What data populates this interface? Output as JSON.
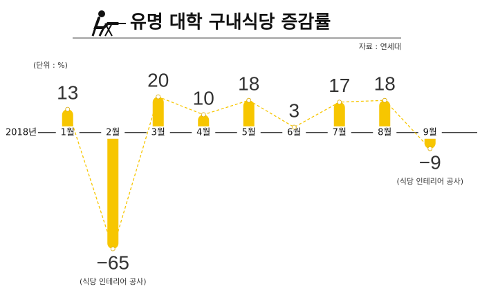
{
  "chart_data": {
    "type": "bar",
    "title": "유명 대학 구내식당 증감률",
    "source": "자료 : 연세대",
    "unit": "(단위 : %)",
    "x_prefix": "2018년",
    "categories": [
      "1월",
      "2월",
      "3월",
      "4월",
      "5월",
      "6월",
      "7월",
      "8월",
      "9월"
    ],
    "values": [
      13,
      -65,
      20,
      10,
      18,
      3,
      17,
      18,
      -9
    ],
    "value_labels": [
      "13",
      "−65",
      "20",
      "10",
      "18",
      "3",
      "17",
      "18",
      "−9"
    ],
    "notes": [
      null,
      "(식당 인테리어 공사)",
      null,
      null,
      null,
      null,
      null,
      null,
      "(식당 인테리어 공사)"
    ],
    "color": "#f7c600",
    "ylim": [
      -65,
      20
    ]
  }
}
